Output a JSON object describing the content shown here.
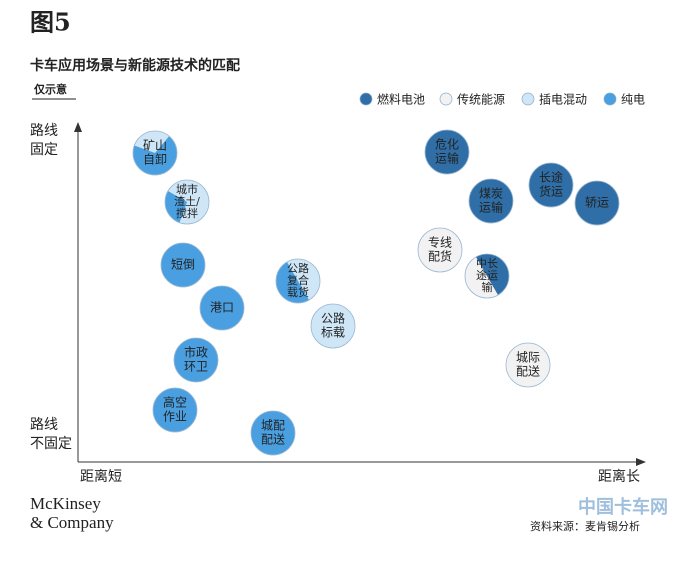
{
  "header": {
    "figure": "图5",
    "title": "卡车应用场景与新能源技术的匹配",
    "note": "仅示意"
  },
  "legend": [
    "燃料电池",
    "传统能源",
    "插电混动",
    "纯电"
  ],
  "axes": {
    "y_top": [
      "路线",
      "固定"
    ],
    "y_bottom": [
      "路线",
      "不固定"
    ],
    "x_left": "距离短",
    "x_right": "距离长"
  },
  "nodes": [
    {
      "label": [
        "矿山",
        "自卸"
      ]
    },
    {
      "label": [
        "城市",
        "渣土/",
        "搅拌"
      ]
    },
    {
      "label": [
        "短倒"
      ]
    },
    {
      "label": [
        "港口"
      ]
    },
    {
      "label": [
        "市政",
        "环卫"
      ]
    },
    {
      "label": [
        "高空",
        "作业"
      ]
    },
    {
      "label": [
        "城配",
        "配送"
      ]
    },
    {
      "label": [
        "公路",
        "复合",
        "载货"
      ]
    },
    {
      "label": [
        "公路",
        "标载"
      ]
    },
    {
      "label": [
        "危化",
        "运输"
      ]
    },
    {
      "label": [
        "煤炭",
        "运输"
      ]
    },
    {
      "label": [
        "长途",
        "货运"
      ]
    },
    {
      "label": [
        "轿运"
      ]
    },
    {
      "label": [
        "专线",
        "配货"
      ]
    },
    {
      "label": [
        "中长",
        "途运",
        "输"
      ]
    },
    {
      "label": [
        "城际",
        "配送"
      ]
    }
  ],
  "footer": {
    "brand": [
      "McKinsey",
      "& Company"
    ],
    "watermark": "中国卡车网",
    "source": "资料来源：麦肯锡分析"
  }
}
